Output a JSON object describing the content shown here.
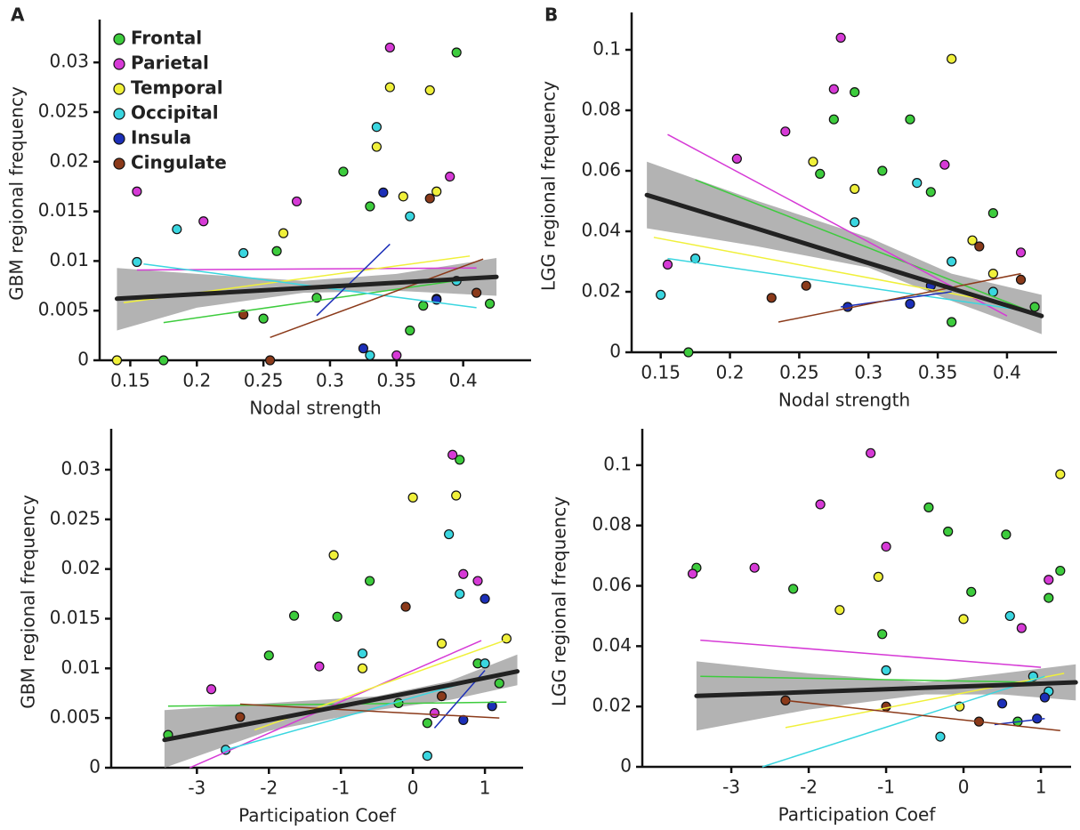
{
  "chart_data": [
    {
      "type": "scatter",
      "panel_label": "A",
      "x_label": "Nodal strength",
      "y_label": "GBM regional frequency",
      "xlim": [
        0.127,
        0.451
      ],
      "ylim": [
        0,
        0.0336
      ],
      "xticks": [
        0.15,
        0.2,
        0.25,
        0.3,
        0.35,
        0.4
      ],
      "yticks": [
        0,
        0.005,
        0.01,
        0.015,
        0.02,
        0.025,
        0.03
      ],
      "legend": "upper left",
      "series": [
        {
          "name": "Frontal",
          "color": "#3dcc3d",
          "x": [
            0.175,
            0.26,
            0.29,
            0.33,
            0.36,
            0.395,
            0.37,
            0.31,
            0.25,
            0.42
          ],
          "values": [
            0,
            0.011,
            0.0063,
            0.0155,
            0.003,
            0.031,
            0.0055,
            0.019,
            0.0042,
            0.0057
          ],
          "fit_x": [
            0.175,
            0.42
          ],
          "fit_y": [
            0.0038,
            0.0085
          ]
        },
        {
          "name": "Parietal",
          "color": "#d63ad6",
          "x": [
            0.155,
            0.205,
            0.275,
            0.345,
            0.38,
            0.39,
            0.35
          ],
          "values": [
            0.017,
            0.014,
            0.016,
            0.0315,
            0.0062,
            0.0185,
            0.0005
          ],
          "fit_x": [
            0.155,
            0.41
          ],
          "fit_y": [
            0.0091,
            0.0093
          ]
        },
        {
          "name": "Temporal",
          "color": "#f0f03a",
          "x": [
            0.14,
            0.265,
            0.335,
            0.345,
            0.375,
            0.38,
            0.355
          ],
          "values": [
            0,
            0.0128,
            0.0215,
            0.0275,
            0.0272,
            0.017,
            0.0165
          ],
          "fit_x": [
            0.145,
            0.405
          ],
          "fit_y": [
            0.0058,
            0.0105
          ]
        },
        {
          "name": "Occipital",
          "color": "#3ad6e0",
          "x": [
            0.155,
            0.185,
            0.235,
            0.335,
            0.36,
            0.33,
            0.395
          ],
          "values": [
            0.0099,
            0.0132,
            0.0108,
            0.0235,
            0.0145,
            0.0005,
            0.008
          ],
          "fit_x": [
            0.16,
            0.41
          ],
          "fit_y": [
            0.0097,
            0.0053
          ]
        },
        {
          "name": "Insula",
          "color": "#1c2fb8",
          "x": [
            0.34,
            0.325,
            0.38
          ],
          "values": [
            0.0169,
            0.0012,
            0.0061
          ],
          "fit_x": [
            0.29,
            0.345
          ],
          "fit_y": [
            0.0045,
            0.0117
          ]
        },
        {
          "name": "Cingulate",
          "color": "#8b3a1a",
          "x": [
            0.235,
            0.255,
            0.375,
            0.41
          ],
          "values": [
            0.0046,
            0,
            0.0163,
            0.0068
          ],
          "fit_x": [
            0.255,
            0.415
          ],
          "fit_y": [
            0.0023,
            0.0102
          ]
        }
      ],
      "trend": {
        "color": "#222222",
        "x": [
          0.14,
          0.2,
          0.28,
          0.35,
          0.425
        ],
        "values": [
          0.0062,
          0.00666,
          0.00728,
          0.00782,
          0.0084
        ],
        "band_lower": [
          0.003,
          0.0053,
          0.0068,
          0.007,
          0.0065
        ],
        "band_upper": [
          0.0093,
          0.0087,
          0.008,
          0.0087,
          0.0103
        ]
      }
    },
    {
      "type": "scatter",
      "panel_label": "B",
      "x_label": "Nodal strength",
      "y_label": "LGG regional frequency",
      "xlim": [
        0.129,
        0.436
      ],
      "ylim": [
        0,
        0.11
      ],
      "xticks": [
        0.15,
        0.2,
        0.25,
        0.3,
        0.35,
        0.4
      ],
      "yticks": [
        0,
        0.02,
        0.04,
        0.06,
        0.08,
        0.1
      ],
      "series": [
        {
          "color": "#3dcc3d",
          "x": [
            0.265,
            0.29,
            0.275,
            0.33,
            0.345,
            0.39,
            0.36,
            0.42,
            0.17,
            0.31
          ],
          "values": [
            0.059,
            0.086,
            0.077,
            0.077,
            0.053,
            0.046,
            0.01,
            0.015,
            0,
            0.06
          ],
          "fit_x": [
            0.175,
            0.42
          ],
          "fit_y": [
            0.057,
            0.013
          ]
        },
        {
          "color": "#d63ad6",
          "x": [
            0.155,
            0.205,
            0.24,
            0.275,
            0.28,
            0.355,
            0.41
          ],
          "values": [
            0.029,
            0.064,
            0.073,
            0.087,
            0.104,
            0.062,
            0.033
          ],
          "fit_x": [
            0.155,
            0.4
          ],
          "fit_y": [
            0.072,
            0.012
          ]
        },
        {
          "color": "#f0f03a",
          "x": [
            0.26,
            0.29,
            0.36,
            0.375,
            0.39
          ],
          "values": [
            0.063,
            0.054,
            0.097,
            0.037,
            0.026
          ],
          "fit_x": [
            0.145,
            0.4
          ],
          "fit_y": [
            0.038,
            0.016
          ]
        },
        {
          "color": "#3ad6e0",
          "x": [
            0.15,
            0.175,
            0.29,
            0.335,
            0.36,
            0.39
          ],
          "values": [
            0.019,
            0.031,
            0.043,
            0.056,
            0.03,
            0.02
          ],
          "fit_x": [
            0.155,
            0.41
          ],
          "fit_y": [
            0.031,
            0.014
          ]
        },
        {
          "color": "#1c2fb8",
          "x": [
            0.285,
            0.33,
            0.345
          ],
          "values": [
            0.015,
            0.016,
            0.022
          ],
          "fit_x": [
            0.28,
            0.36
          ],
          "fit_y": [
            0.015,
            0.02
          ]
        },
        {
          "color": "#8b3a1a",
          "x": [
            0.23,
            0.255,
            0.38,
            0.41
          ],
          "values": [
            0.018,
            0.022,
            0.035,
            0.024
          ],
          "fit_x": [
            0.235,
            0.41
          ],
          "fit_y": [
            0.01,
            0.026
          ]
        }
      ],
      "trend": {
        "color": "#222222",
        "x": [
          0.14,
          0.22,
          0.3,
          0.36,
          0.425
        ],
        "values": [
          0.052,
          0.0408,
          0.0295,
          0.0211,
          0.012
        ],
        "band_lower": [
          0.041,
          0.035,
          0.028,
          0.017,
          0.006
        ],
        "band_upper": [
          0.063,
          0.05,
          0.038,
          0.026,
          0.019
        ]
      }
    },
    {
      "type": "scatter",
      "x_label": "Participation Coef",
      "y_label": "GBM regional frequency",
      "xlim": [
        -4.19,
        1.53
      ],
      "ylim": [
        0,
        0.0334
      ],
      "xticks": [
        -3,
        -2,
        -1,
        0,
        1
      ],
      "yticks": [
        0,
        0.005,
        0.01,
        0.015,
        0.02,
        0.025,
        0.03
      ],
      "series": [
        {
          "color": "#3dcc3d",
          "x": [
            -3.4,
            -2,
            -1.65,
            -1.05,
            -0.6,
            0.65,
            0.9,
            1.2,
            -0.2,
            0.2
          ],
          "values": [
            0.0033,
            0.0113,
            0.0153,
            0.0152,
            0.0188,
            0.031,
            0.0105,
            0.0085,
            0.0065,
            0.0045
          ],
          "fit_x": [
            -3.4,
            1.3
          ],
          "fit_y": [
            0.0062,
            0.0066
          ]
        },
        {
          "color": "#d63ad6",
          "x": [
            -2.8,
            -1.3,
            0.55,
            0.7,
            0.9,
            0.3
          ],
          "values": [
            0.0079,
            0.0102,
            0.0315,
            0.0195,
            0.0188,
            0.0055
          ],
          "fit_x": [
            -3.1,
            0.95
          ],
          "fit_y": [
            0,
            0.0128
          ]
        },
        {
          "color": "#f0f03a",
          "x": [
            -1.1,
            0,
            0.6,
            0.4,
            1.3,
            -0.7
          ],
          "values": [
            0.0214,
            0.0272,
            0.0274,
            0.0125,
            0.013,
            0.01
          ],
          "fit_x": [
            -2.2,
            1.35
          ],
          "fit_y": [
            0.0038,
            0.013
          ]
        },
        {
          "color": "#3ad6e0",
          "x": [
            -2.6,
            -0.7,
            0.5,
            0.65,
            1.0,
            0.2
          ],
          "values": [
            0.0018,
            0.0115,
            0.0235,
            0.0175,
            0.0105,
            0.0012
          ],
          "fit_x": [
            -2.6,
            1.05
          ],
          "fit_y": [
            0.0018,
            0.0092
          ]
        },
        {
          "color": "#1c2fb8",
          "x": [
            1.0,
            0.7,
            1.1
          ],
          "values": [
            0.017,
            0.0048,
            0.0062
          ],
          "fit_x": [
            0.3,
            1.0
          ],
          "fit_y": [
            0.004,
            0.0098
          ]
        },
        {
          "color": "#8b3a1a",
          "x": [
            -2.4,
            -0.1,
            0.4
          ],
          "values": [
            0.0051,
            0.0162,
            0.0072
          ],
          "fit_x": [
            -2.4,
            1.2
          ],
          "fit_y": [
            0.0064,
            0.005
          ]
        }
      ],
      "trend": {
        "color": "#222222",
        "x": [
          -3.45,
          -2,
          -0.5,
          0.5,
          1.45
        ],
        "values": [
          0.0028,
          0.0048,
          0.0069,
          0.0083,
          0.0097
        ],
        "band_lower": [
          0,
          0.0037,
          0.0058,
          0.0068,
          0.0083
        ],
        "band_upper": [
          0.0058,
          0.0065,
          0.0072,
          0.0087,
          0.0114
        ]
      }
    },
    {
      "type": "scatter",
      "x_label": "Participation Coef",
      "y_label": "LGG regional frequency",
      "xlim": [
        -4.15,
        1.39
      ],
      "ylim": [
        0,
        0.1097
      ],
      "xticks": [
        -3,
        -2,
        -1,
        0,
        1
      ],
      "yticks": [
        0,
        0.02,
        0.04,
        0.06,
        0.08,
        0.1
      ],
      "series": [
        {
          "color": "#3dcc3d",
          "x": [
            -3.45,
            -2.2,
            -0.45,
            -0.2,
            0.55,
            1.25,
            1.1,
            -1.05,
            0.1,
            0.7
          ],
          "values": [
            0.066,
            0.059,
            0.086,
            0.078,
            0.077,
            0.065,
            0.056,
            0.044,
            0.058,
            0.015
          ],
          "fit_x": [
            -3.4,
            1.0
          ],
          "fit_y": [
            0.03,
            0.028
          ]
        },
        {
          "color": "#d63ad6",
          "x": [
            -3.5,
            -2.7,
            -1.85,
            -1.2,
            -1.0,
            0.75,
            1.1
          ],
          "values": [
            0.064,
            0.066,
            0.087,
            0.104,
            0.073,
            0.046,
            0.062
          ],
          "fit_x": [
            -3.4,
            1.0
          ],
          "fit_y": [
            0.042,
            0.033
          ]
        },
        {
          "color": "#f0f03a",
          "x": [
            -1.6,
            -1.1,
            0.0,
            1.25,
            -0.05
          ],
          "values": [
            0.052,
            0.063,
            0.049,
            0.097,
            0.02
          ],
          "fit_x": [
            -2.3,
            1.3
          ],
          "fit_y": [
            0.013,
            0.031
          ]
        },
        {
          "color": "#3ad6e0",
          "x": [
            -1.0,
            0.6,
            0.9,
            1.1,
            -0.3
          ],
          "values": [
            0.032,
            0.05,
            0.03,
            0.025,
            0.01
          ],
          "fit_x": [
            -2.6,
            1.05
          ],
          "fit_y": [
            0,
            0.03
          ]
        },
        {
          "color": "#1c2fb8",
          "x": [
            0.95,
            0.5,
            1.05
          ],
          "values": [
            0.016,
            0.021,
            0.023
          ],
          "fit_x": [
            0.4,
            1.05
          ],
          "fit_y": [
            0.014,
            0.016
          ]
        },
        {
          "color": "#8b3a1a",
          "x": [
            -2.3,
            -1.0,
            0.2
          ],
          "values": [
            0.022,
            0.02,
            0.015
          ],
          "fit_x": [
            -2.3,
            1.25
          ],
          "fit_y": [
            0.022,
            0.012
          ]
        }
      ],
      "trend": {
        "color": "#222222",
        "x": [
          -3.45,
          -2,
          -0.5,
          0.5,
          1.45
        ],
        "values": [
          0.0235,
          0.0248,
          0.0262,
          0.0271,
          0.028
        ],
        "band_lower": [
          0.012,
          0.019,
          0.024,
          0.024,
          0.022
        ],
        "band_upper": [
          0.035,
          0.031,
          0.028,
          0.031,
          0.034
        ]
      }
    }
  ]
}
